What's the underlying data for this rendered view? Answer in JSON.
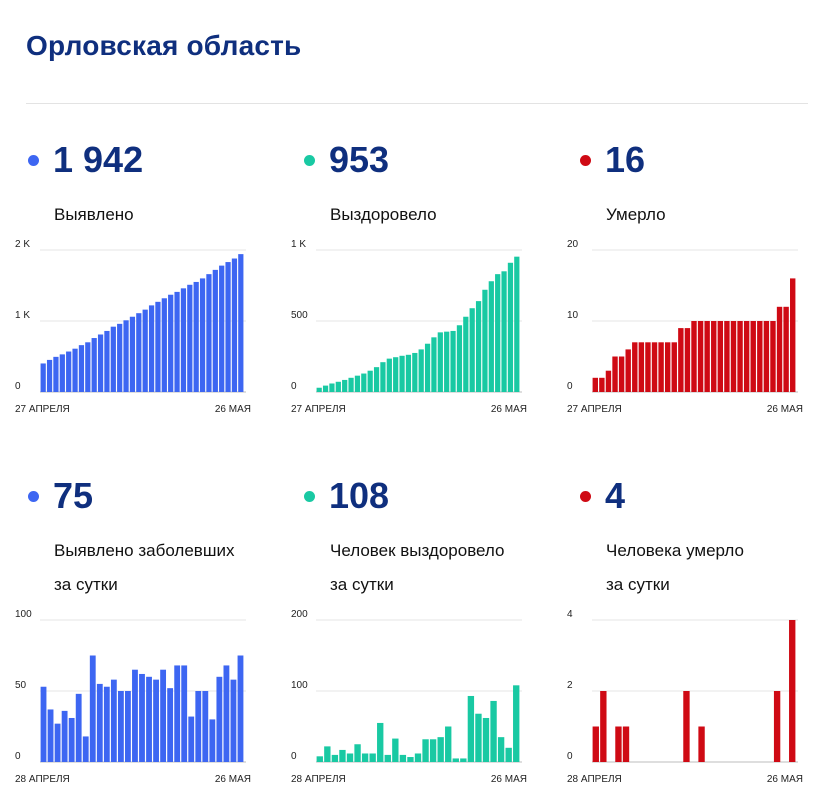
{
  "header": {
    "title": "Орловская область"
  },
  "panels": [
    {
      "id": "detected",
      "value": "1 942",
      "label": [
        "Выявлено"
      ],
      "color": "#3d66f2",
      "chart_data": {
        "type": "bar",
        "x_start_label": "27 АПРЕЛЯ",
        "x_end_label": "26 МАЯ",
        "ylim": [
          0,
          2000
        ],
        "yticks": [
          0,
          1000,
          2000
        ],
        "ytick_labels": [
          "0",
          "1 K",
          "2 K"
        ],
        "values": [
          402,
          452,
          495,
          530,
          570,
          610,
          660,
          700,
          760,
          810,
          860,
          920,
          960,
          1010,
          1060,
          1110,
          1160,
          1220,
          1270,
          1320,
          1370,
          1410,
          1460,
          1510,
          1550,
          1600,
          1660,
          1720,
          1780,
          1830,
          1880,
          1942
        ]
      }
    },
    {
      "id": "recovered",
      "value": "953",
      "label": [
        "Выздоровело"
      ],
      "color": "#19c9a3",
      "chart_data": {
        "type": "bar",
        "x_start_label": "27 АПРЕЛЯ",
        "x_end_label": "26 МАЯ",
        "ylim": [
          0,
          1000
        ],
        "yticks": [
          0,
          500,
          1000
        ],
        "ytick_labels": [
          "0",
          "500",
          "1 K"
        ],
        "values": [
          30,
          45,
          60,
          72,
          85,
          100,
          115,
          130,
          150,
          175,
          210,
          235,
          245,
          255,
          262,
          275,
          300,
          340,
          385,
          420,
          425,
          430,
          470,
          530,
          590,
          640,
          720,
          780,
          830,
          850,
          910,
          953
        ]
      }
    },
    {
      "id": "deaths",
      "value": "16",
      "label": [
        "Умерло"
      ],
      "color": "#cf0a14",
      "chart_data": {
        "type": "bar",
        "x_start_label": "27 АПРЕЛЯ",
        "x_end_label": "26 МАЯ",
        "ylim": [
          0,
          20
        ],
        "yticks": [
          0,
          10,
          20
        ],
        "ytick_labels": [
          "0",
          "10",
          "20"
        ],
        "values": [
          2,
          2,
          3,
          5,
          5,
          6,
          7,
          7,
          7,
          7,
          7,
          7,
          7,
          9,
          9,
          10,
          10,
          10,
          10,
          10,
          10,
          10,
          10,
          10,
          10,
          10,
          10,
          10,
          12,
          12,
          16
        ]
      }
    },
    {
      "id": "detected-daily",
      "value": "75",
      "label": [
        "Выявлено заболевших",
        "за сутки"
      ],
      "color": "#3d66f2",
      "chart_data": {
        "type": "bar",
        "x_start_label": "28 АПРЕЛЯ",
        "x_end_label": "26 МАЯ",
        "ylim": [
          0,
          100
        ],
        "yticks": [
          0,
          50,
          100
        ],
        "ytick_labels": [
          "0",
          "50",
          "100"
        ],
        "values": [
          53,
          37,
          27,
          36,
          31,
          48,
          18,
          75,
          55,
          53,
          58,
          50,
          50,
          65,
          62,
          60,
          58,
          65,
          52,
          68,
          68,
          32,
          50,
          50,
          30,
          60,
          68,
          58,
          75
        ]
      }
    },
    {
      "id": "recovered-daily",
      "value": "108",
      "label": [
        "Человек выздоровело",
        "за сутки"
      ],
      "color": "#19c9a3",
      "chart_data": {
        "type": "bar",
        "x_start_label": "28 АПРЕЛЯ",
        "x_end_label": "26 МАЯ",
        "ylim": [
          0,
          200
        ],
        "yticks": [
          0,
          100,
          200
        ],
        "ytick_labels": [
          "0",
          "100",
          "200"
        ],
        "values": [
          8,
          22,
          10,
          17,
          12,
          25,
          12,
          12,
          55,
          10,
          33,
          10,
          7,
          12,
          32,
          32,
          35,
          50,
          5,
          5,
          93,
          68,
          62,
          86,
          35,
          20,
          108
        ]
      }
    },
    {
      "id": "deaths-daily",
      "value": "4",
      "label": [
        "Человека умерло",
        "за сутки"
      ],
      "color": "#cf0a14",
      "chart_data": {
        "type": "bar",
        "x_start_label": "28 АПРЕЛЯ",
        "x_end_label": "26 МАЯ",
        "ylim": [
          0,
          4
        ],
        "yticks": [
          0,
          2,
          4
        ],
        "ytick_labels": [
          "0",
          "2",
          "4"
        ],
        "values": [
          1,
          2,
          0,
          1,
          1,
          0,
          0,
          0,
          0,
          0,
          0,
          0,
          2,
          0,
          1,
          0,
          0,
          0,
          0,
          0,
          0,
          0,
          0,
          0,
          2,
          0,
          4
        ]
      }
    }
  ]
}
